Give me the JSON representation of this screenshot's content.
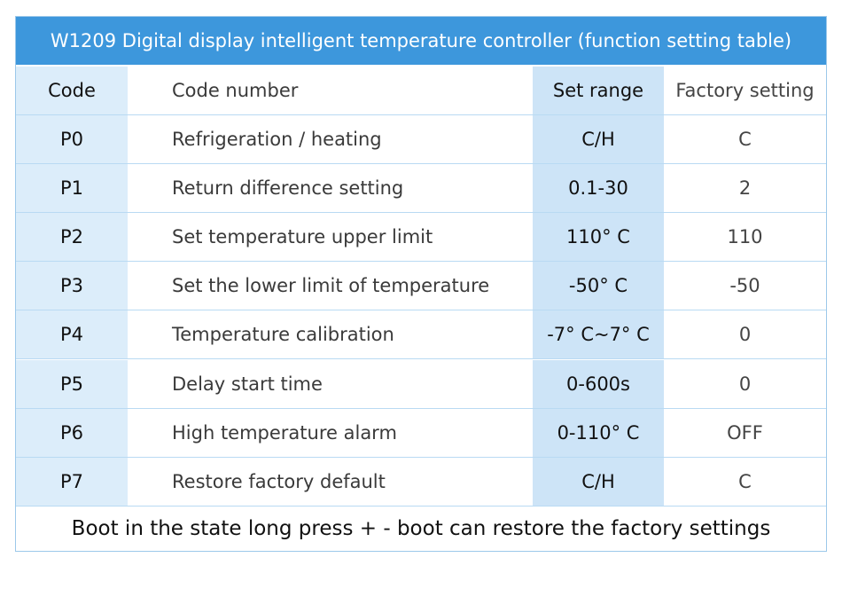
{
  "header": {
    "title": "W1209 Digital display intelligent temperature controller (function setting table)"
  },
  "table": {
    "columns": [
      "Code",
      "Code number",
      "Set range",
      "Factory setting"
    ],
    "rows": [
      [
        "P0",
        "Refrigeration / heating",
        "C/H",
        "C"
      ],
      [
        "P1",
        "Return difference setting",
        "0.1-30",
        "2"
      ],
      [
        "P2",
        "Set temperature upper limit",
        "110° C",
        "110"
      ],
      [
        "P3",
        "Set the lower limit of temperature",
        "-50° C",
        "-50"
      ],
      [
        "P4",
        "Temperature calibration",
        "-7° C~7° C",
        "0"
      ],
      [
        "P5",
        "Delay start time",
        "0-600s",
        "0"
      ],
      [
        "P6",
        "High temperature alarm",
        "0-110° C",
        "OFF"
      ],
      [
        "P7",
        "Restore factory default",
        "C/H",
        "C"
      ]
    ]
  },
  "footer": "Boot in the state long press + - boot can restore the factory settings"
}
